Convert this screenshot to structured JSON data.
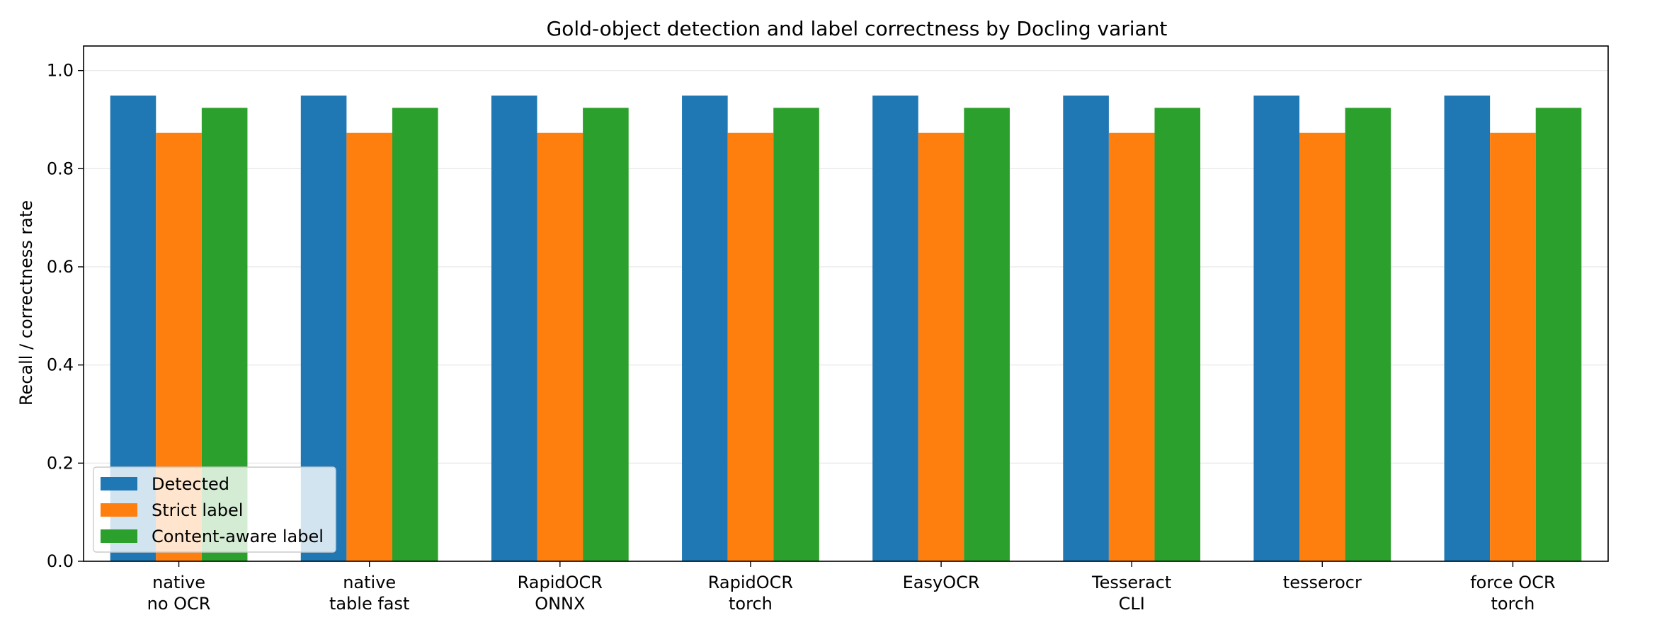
{
  "chart_data": {
    "type": "bar",
    "title": "Gold-object detection and label correctness by Docling variant",
    "xlabel": "",
    "ylabel": "Recall / correctness rate",
    "ylim": [
      0,
      1.05
    ],
    "yticks": [
      "0.0",
      "0.2",
      "0.4",
      "0.6",
      "0.8",
      "1.0"
    ],
    "categories": [
      [
        "native",
        "no OCR"
      ],
      [
        "native",
        "table fast"
      ],
      [
        "RapidOCR",
        "ONNX"
      ],
      [
        "RapidOCR",
        "torch"
      ],
      [
        "EasyOCR"
      ],
      [
        "Tesseract",
        "CLI"
      ],
      [
        "tesserocr"
      ],
      [
        "force OCR",
        "torch"
      ]
    ],
    "series": [
      {
        "name": "Detected",
        "color": "#1f77b4",
        "values": [
          0.949,
          0.949,
          0.949,
          0.949,
          0.949,
          0.949,
          0.949,
          0.949
        ]
      },
      {
        "name": "Strict label",
        "color": "#ff7f0e",
        "values": [
          0.873,
          0.873,
          0.873,
          0.873,
          0.873,
          0.873,
          0.873,
          0.873
        ]
      },
      {
        "name": "Content-aware label",
        "color": "#2ca02c",
        "values": [
          0.924,
          0.924,
          0.924,
          0.924,
          0.924,
          0.924,
          0.924,
          0.924
        ]
      }
    ],
    "grid": "y",
    "legend": "lower-left"
  }
}
